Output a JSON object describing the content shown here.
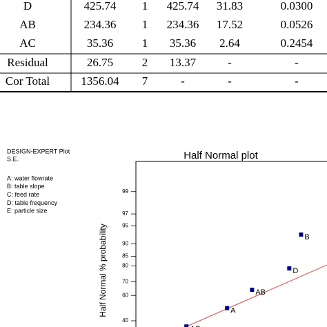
{
  "table": {
    "rows": [
      [
        "D",
        "425.74",
        "1",
        "425.74",
        "31.83",
        "0.0300"
      ],
      [
        "AB",
        "234.36",
        "1",
        "234.36",
        "17.52",
        "0.0526"
      ],
      [
        "AC",
        "35.36",
        "1",
        "35.36",
        "2.64",
        "0.2454"
      ],
      [
        "Residual",
        "26.75",
        "2",
        "13.37",
        "-",
        "-"
      ],
      [
        "Cor Total",
        "1356.04",
        "7",
        "-",
        "-",
        "-"
      ]
    ]
  },
  "plot_notes": {
    "software": "DESIGN-EXPERT Plot",
    "response": "S.E.",
    "factors": [
      "A: water flowrate",
      "B: table slope",
      "C: feed rate",
      "D: table frequency",
      "E: particle size"
    ]
  },
  "chart_data": {
    "type": "scatter",
    "title": "Half Normal plot",
    "y_label": "Half Normal % probability",
    "y_scale": "probit",
    "x": [
      15.78,
      14.59,
      10.83,
      8.31,
      4.2
    ],
    "values": [
      92.9,
      78.6,
      64.3,
      50,
      35.7
    ],
    "point_labels": [
      "B",
      "D",
      "AB",
      "A",
      "AC"
    ],
    "color": "#00008b",
    "xlim": [
      -0.9,
      18.4
    ],
    "ylim": [
      35.3,
      99.83
    ],
    "yticks": [
      99,
      97,
      95,
      90,
      85,
      80,
      70,
      60,
      40
    ]
  }
}
